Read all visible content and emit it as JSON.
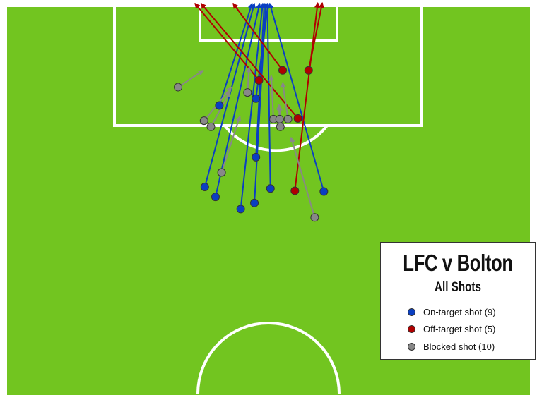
{
  "chart_data": {
    "type": "scatter",
    "title": "LFC v Bolton",
    "subtitle": "All Shots",
    "units": "metres from goal centre (x) and goal line (y)",
    "pitch_color": "#72c520",
    "legend_position": "bottom-right",
    "series": [
      {
        "name": "On-target shot (9)",
        "color": "#0a3fc2",
        "shots": [
          {
            "start": [
              -6.4,
              13.1
            ],
            "end": [
              -2.1,
              -0.3
            ]
          },
          {
            "start": [
              -8.3,
              23.8
            ],
            "end": [
              -1.8,
              -0.3
            ]
          },
          {
            "start": [
              -6.9,
              25.1
            ],
            "end": [
              -1.1,
              -0.3
            ]
          },
          {
            "start": [
              -3.6,
              26.7
            ],
            "end": [
              -0.7,
              -0.3
            ]
          },
          {
            "start": [
              -1.8,
              25.9
            ],
            "end": [
              -0.3,
              -0.3
            ]
          },
          {
            "start": [
              0.3,
              24.0
            ],
            "end": [
              -0.1,
              -0.3
            ]
          },
          {
            "start": [
              7.3,
              24.4
            ],
            "end": [
              0.2,
              -0.3
            ]
          },
          {
            "start": [
              -1.6,
              19.9
            ],
            "end": [
              -0.5,
              -0.3
            ]
          },
          {
            "start": [
              -1.6,
              12.2
            ],
            "end": [
              0.0,
              -0.3
            ]
          }
        ]
      },
      {
        "name": "Off-target shot (5)",
        "color": "#b00000",
        "shots": [
          {
            "start": [
              -1.2,
              9.8
            ],
            "end": [
              -9.6,
              -0.3
            ]
          },
          {
            "start": [
              1.9,
              8.5
            ],
            "end": [
              -4.6,
              -0.3
            ]
          },
          {
            "start": [
              3.9,
              14.8
            ],
            "end": [
              -8.8,
              -0.3
            ]
          },
          {
            "start": [
              5.3,
              8.5
            ],
            "end": [
              7.1,
              -0.5
            ]
          },
          {
            "start": [
              3.5,
              24.3
            ],
            "end": [
              6.5,
              -0.5
            ]
          }
        ]
      },
      {
        "name": "Blocked shot (10)",
        "color": "#888888",
        "shots": [
          {
            "start": [
              -11.8,
              10.7
            ],
            "end": [
              -8.5,
              8.5
            ]
          },
          {
            "start": [
              -8.4,
              15.1
            ],
            "end": [
              -4.8,
              10.7
            ]
          },
          {
            "start": [
              -7.5,
              15.9
            ],
            "end": [
              -5.0,
              11.3
            ]
          },
          {
            "start": [
              -6.1,
              21.9
            ],
            "end": [
              -3.7,
              14.5
            ]
          },
          {
            "start": [
              -2.7,
              11.4
            ],
            "end": [
              -2.5,
              8.1
            ]
          },
          {
            "start": [
              0.7,
              14.9
            ],
            "end": [
              0.4,
              9.2
            ]
          },
          {
            "start": [
              1.5,
              14.9
            ],
            "end": [
              1.4,
              13.0
            ]
          },
          {
            "start": [
              2.6,
              14.9
            ],
            "end": [
              1.9,
              10.1
            ]
          },
          {
            "start": [
              1.6,
              15.9
            ],
            "end": [
              1.5,
              13.1
            ]
          },
          {
            "start": [
              6.1,
              27.8
            ],
            "end": [
              3.0,
              17.3
            ]
          }
        ]
      }
    ]
  }
}
